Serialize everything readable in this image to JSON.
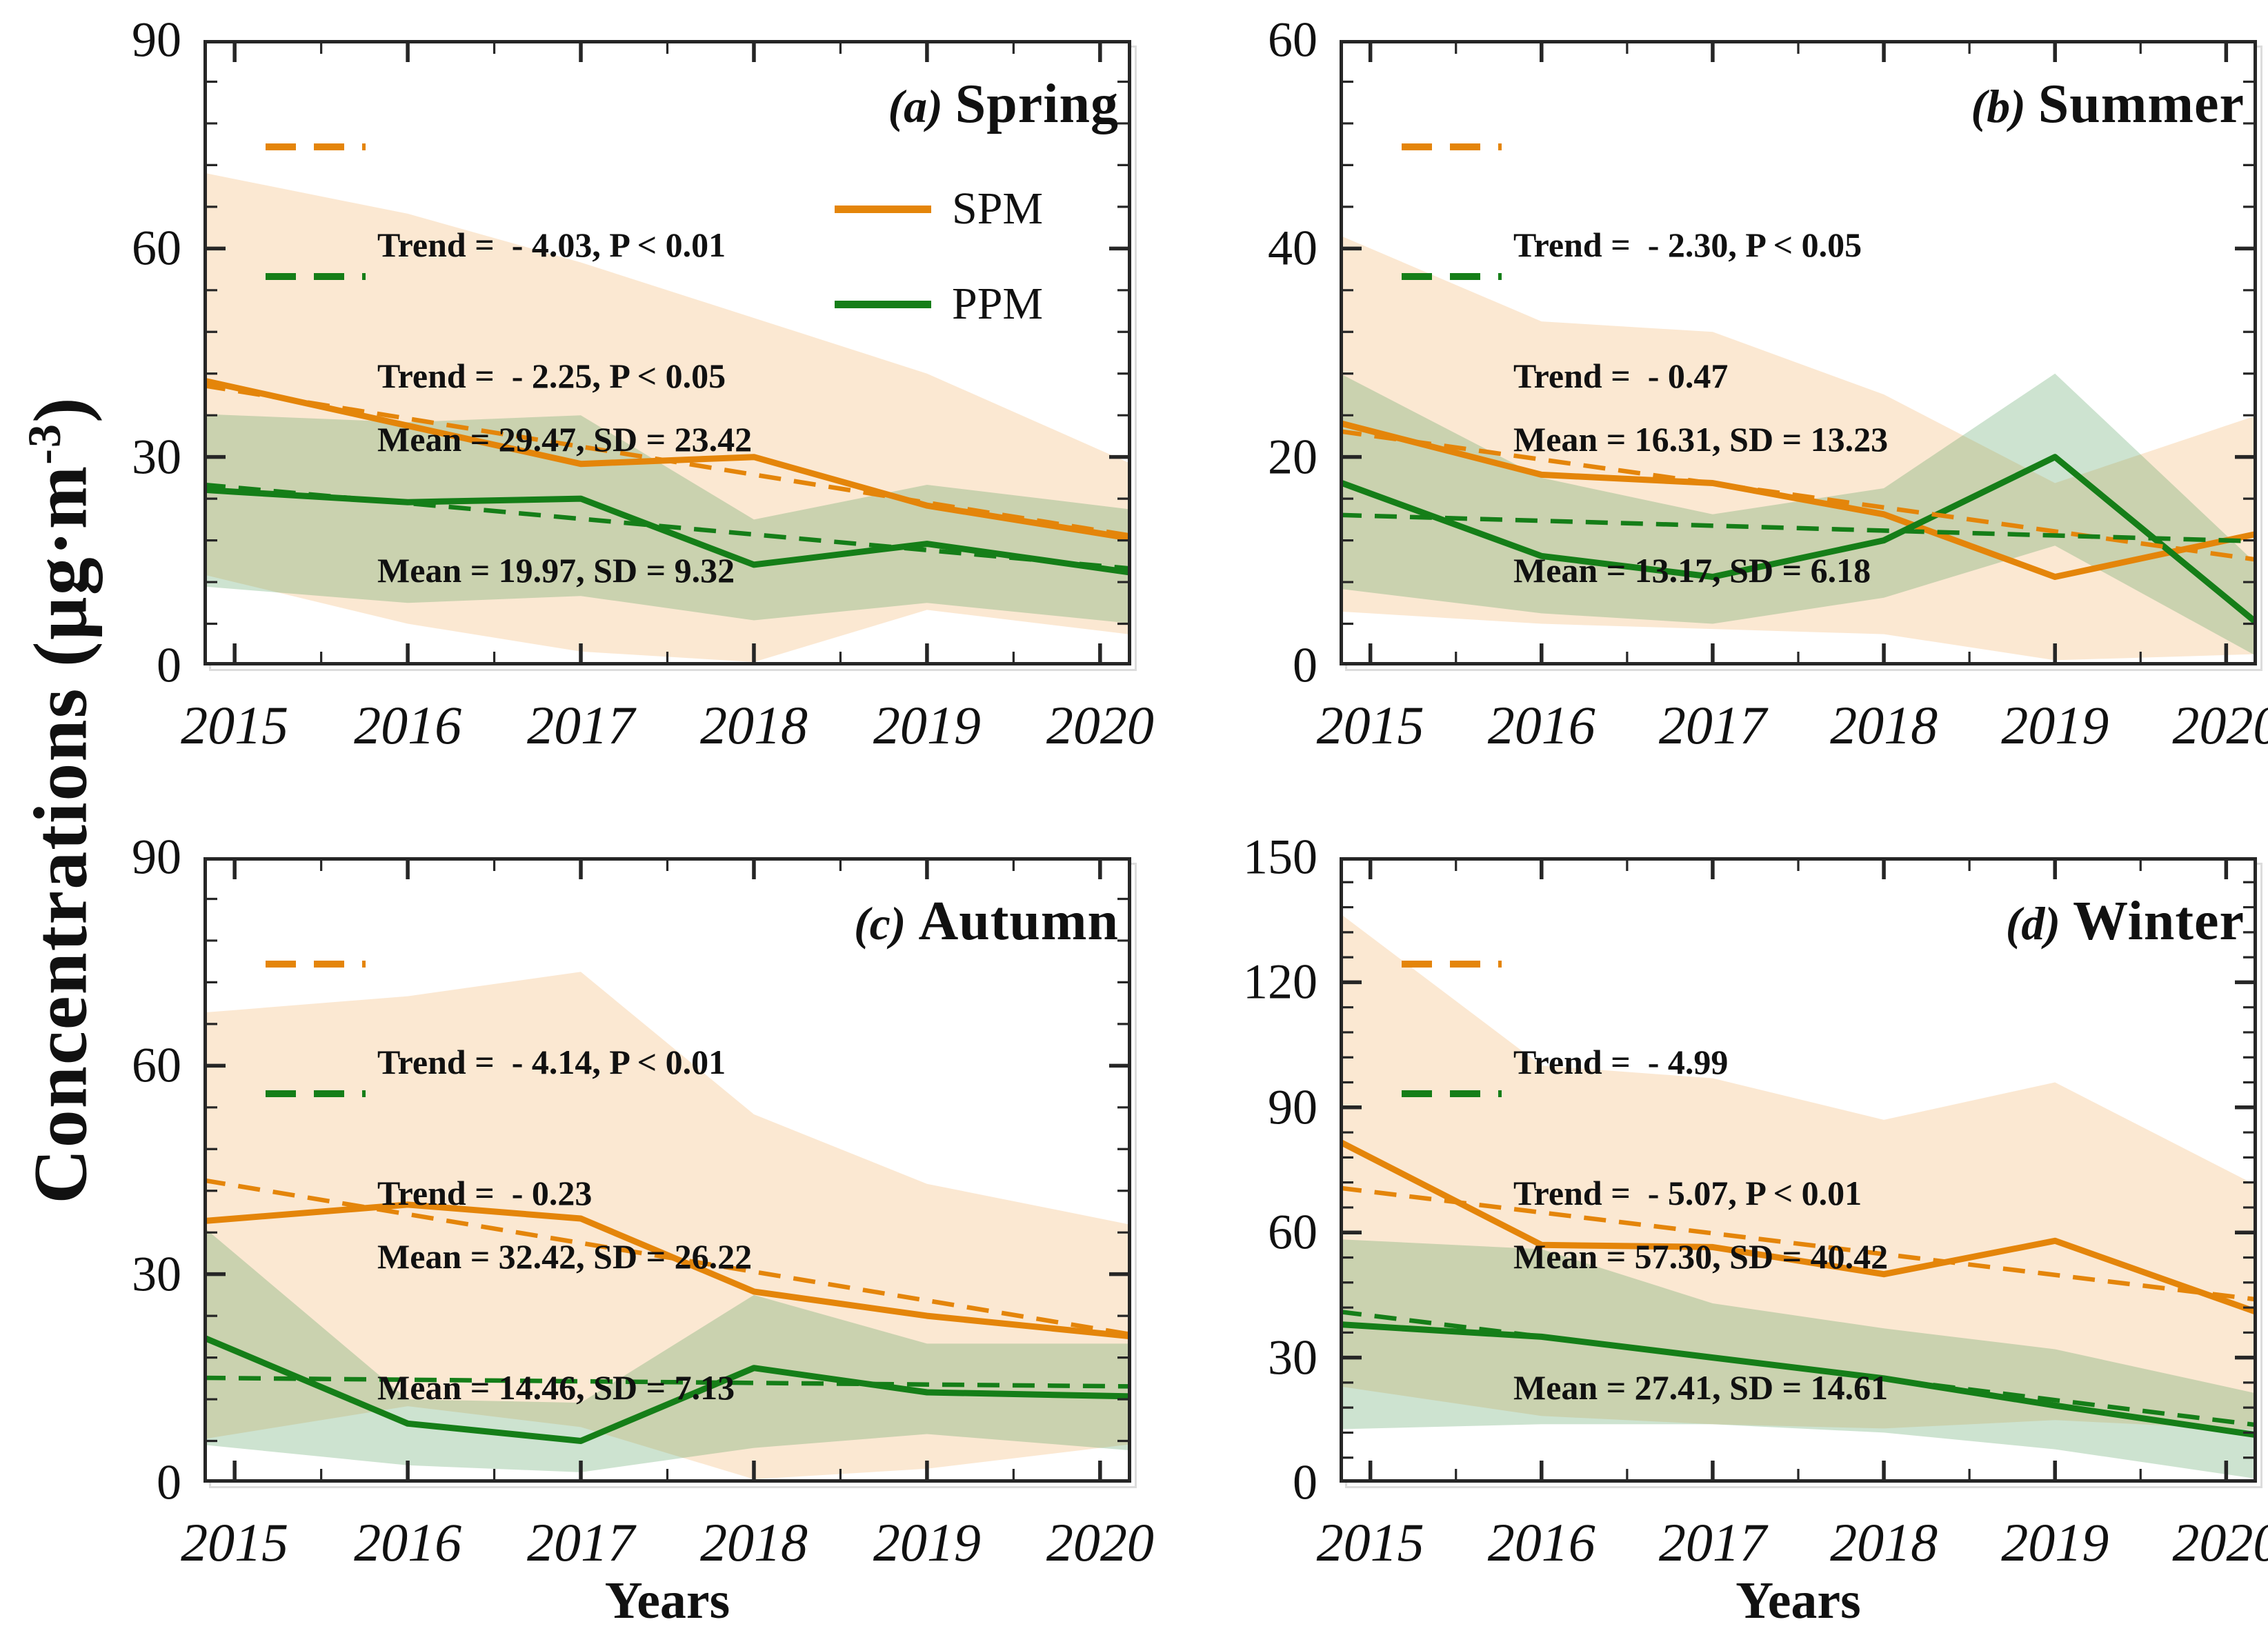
{
  "figure": {
    "x_axis_title": "Years",
    "y_axis_title_prefix": "Concentrations (µg·m",
    "y_axis_title_sup": "-3",
    "y_axis_title_suffix": ")"
  },
  "legend": {
    "items": [
      {
        "label": "SPM"
      },
      {
        "label": "PPM"
      }
    ]
  },
  "colors": {
    "spm_line": "#E4850A",
    "ppm_line": "#157E18",
    "spm_fill": "rgba(233,140,30,0.20)",
    "ppm_fill": "rgba(70,150,80,0.27)",
    "frame": "#262626",
    "text": "#111111"
  },
  "chart_data": {
    "type": "line",
    "x": [
      2015,
      2016,
      2017,
      2018,
      2019,
      2020
    ],
    "x_tick_labels": [
      "2015",
      "2016",
      "2017",
      "2018",
      "2019",
      "2020"
    ],
    "panels": [
      {
        "id": "a",
        "label_prefix": "(a)",
        "label_name": "Spring",
        "ylim": [
          0,
          90
        ],
        "yticks": [
          0,
          30,
          60,
          90
        ],
        "y_minor_step": 6,
        "spm": {
          "anno_line1": "Trend =  - 4.03, P < 0.01",
          "anno_line2": "Mean = 29.47, SD = 23.42",
          "trend": -4.03,
          "mean": 29.47,
          "sd": 23.42,
          "values": [
            40,
            34.5,
            29,
            30,
            23,
            19
          ],
          "trend_line": [
            39.55,
            19.4
          ],
          "band_upper": [
            70,
            65,
            58,
            50,
            42,
            31
          ],
          "band_lower": [
            12,
            6,
            2,
            0.5,
            8,
            5
          ]
        },
        "ppm": {
          "anno_line1": "Trend =  - 2.25, P < 0.05",
          "anno_line2": "Mean = 19.97, SD = 9.32",
          "trend": -2.25,
          "mean": 19.97,
          "sd": 9.32,
          "values": [
            25,
            23.5,
            24,
            14.5,
            17.5,
            14
          ],
          "trend_line": [
            25.6,
            14.35
          ],
          "band_upper": [
            36,
            35,
            36,
            21,
            26,
            23
          ],
          "band_lower": [
            11,
            9,
            10,
            6.5,
            9,
            6.5
          ]
        }
      },
      {
        "id": "b",
        "label_prefix": "(b)",
        "label_name": "Summer",
        "ylim": [
          0,
          60
        ],
        "yticks": [
          0,
          20,
          40,
          60
        ],
        "y_minor_step": 4,
        "spm": {
          "anno_line1": "Trend =  - 2.30, P < 0.05",
          "anno_line2": "Mean = 16.31, SD = 13.23",
          "trend": -2.3,
          "mean": 16.31,
          "sd": 13.23,
          "values": [
            22.5,
            18.3,
            17.5,
            14.5,
            8.5,
            12
          ],
          "trend_line": [
            22.06,
            10.56
          ],
          "band_upper": [
            40,
            33,
            32,
            26,
            17.5,
            23
          ],
          "band_lower": [
            5,
            4,
            3.5,
            3,
            0.5,
            1
          ]
        },
        "ppm": {
          "anno_line1": "Trend =  - 0.47",
          "anno_line2": "Mean = 13.17, SD = 6.18",
          "trend": -0.47,
          "mean": 13.17,
          "sd": 6.18,
          "values": [
            16.5,
            10.5,
            8.5,
            12,
            20,
            6.5
          ],
          "trend_line": [
            14.35,
            12.0
          ],
          "band_upper": [
            26.5,
            18,
            14.5,
            17,
            28,
            12.5
          ],
          "band_lower": [
            7,
            5,
            4,
            6.5,
            11.5,
            2.5
          ]
        }
      },
      {
        "id": "c",
        "label_prefix": "(c)",
        "label_name": "Autumn",
        "ylim": [
          0,
          90
        ],
        "yticks": [
          0,
          30,
          60,
          90
        ],
        "y_minor_step": 6,
        "spm": {
          "anno_line1": "Trend =  - 4.14, P < 0.01",
          "anno_line2": "Mean = 32.42, SD = 26.22",
          "trend": -4.14,
          "mean": 32.42,
          "sd": 26.22,
          "values": [
            38,
            40,
            38,
            27.5,
            24,
            21.5
          ],
          "trend_line": [
            42.77,
            22.07
          ],
          "band_upper": [
            68,
            70,
            73.5,
            53,
            43,
            38
          ],
          "band_lower": [
            7,
            11,
            8,
            0.5,
            2,
            5
          ]
        },
        "ppm": {
          "anno_line1": "Trend =  - 0.23",
          "anno_line2": "Mean = 14.46, SD = 7.13",
          "trend": -0.23,
          "mean": 14.46,
          "sd": 7.13,
          "values": [
            19,
            8.5,
            6,
            16.5,
            13,
            12.5
          ],
          "trend_line": [
            15.04,
            13.89
          ],
          "band_upper": [
            33,
            12,
            11.5,
            27,
            20,
            20
          ],
          "band_lower": [
            5,
            2.5,
            1.5,
            5,
            7,
            5
          ]
        }
      },
      {
        "id": "d",
        "label_prefix": "(d)",
        "label_name": "Winter",
        "ylim": [
          0,
          150
        ],
        "yticks": [
          0,
          30,
          60,
          90,
          120,
          150
        ],
        "y_minor_step": 6,
        "spm": {
          "anno_line1": "Trend =  - 4.99",
          "anno_line2": "Mean = 57.30, SD = 40.42",
          "trend": -4.99,
          "mean": 57.3,
          "sd": 40.42,
          "values": [
            78,
            57,
            56.5,
            50,
            58,
            43.5
          ],
          "trend_line": [
            69.78,
            44.83
          ],
          "band_upper": [
            131,
            100,
            97,
            87,
            96,
            75
          ],
          "band_lower": [
            22,
            16,
            14,
            13,
            15,
            13
          ]
        },
        "ppm": {
          "anno_line1": "Trend =  - 5.07, P < 0.01",
          "anno_line2": "Mean = 27.41, SD = 14.61",
          "trend": -5.07,
          "mean": 27.41,
          "sd": 14.61,
          "values": [
            37.5,
            35,
            30,
            25,
            18.5,
            12.5
          ],
          "trend_line": [
            40.09,
            14.74
          ],
          "band_upper": [
            58,
            56,
            43,
            37,
            32,
            23
          ],
          "band_lower": [
            13,
            14,
            14,
            12,
            8,
            2
          ]
        }
      }
    ]
  }
}
